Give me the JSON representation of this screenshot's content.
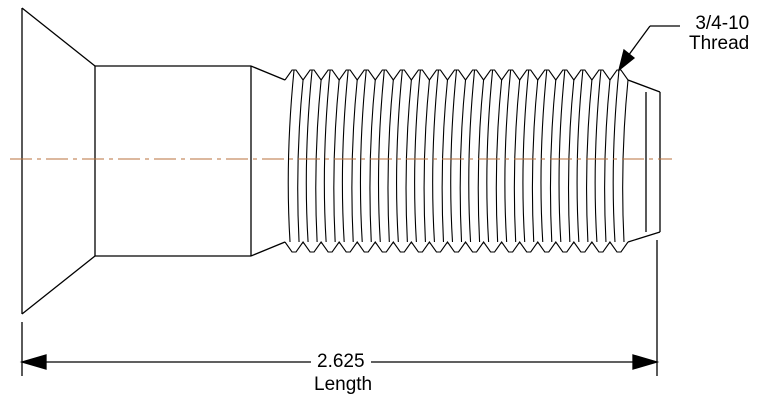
{
  "thread_callout": {
    "size": "3/4-10",
    "word": "Thread"
  },
  "length_dimension": {
    "value": "2.625",
    "word": "Length"
  },
  "thread": {
    "crest_count": 19
  },
  "colors": {
    "outline": "#000000",
    "centerline": "#b8723c",
    "background": "#ffffff"
  }
}
